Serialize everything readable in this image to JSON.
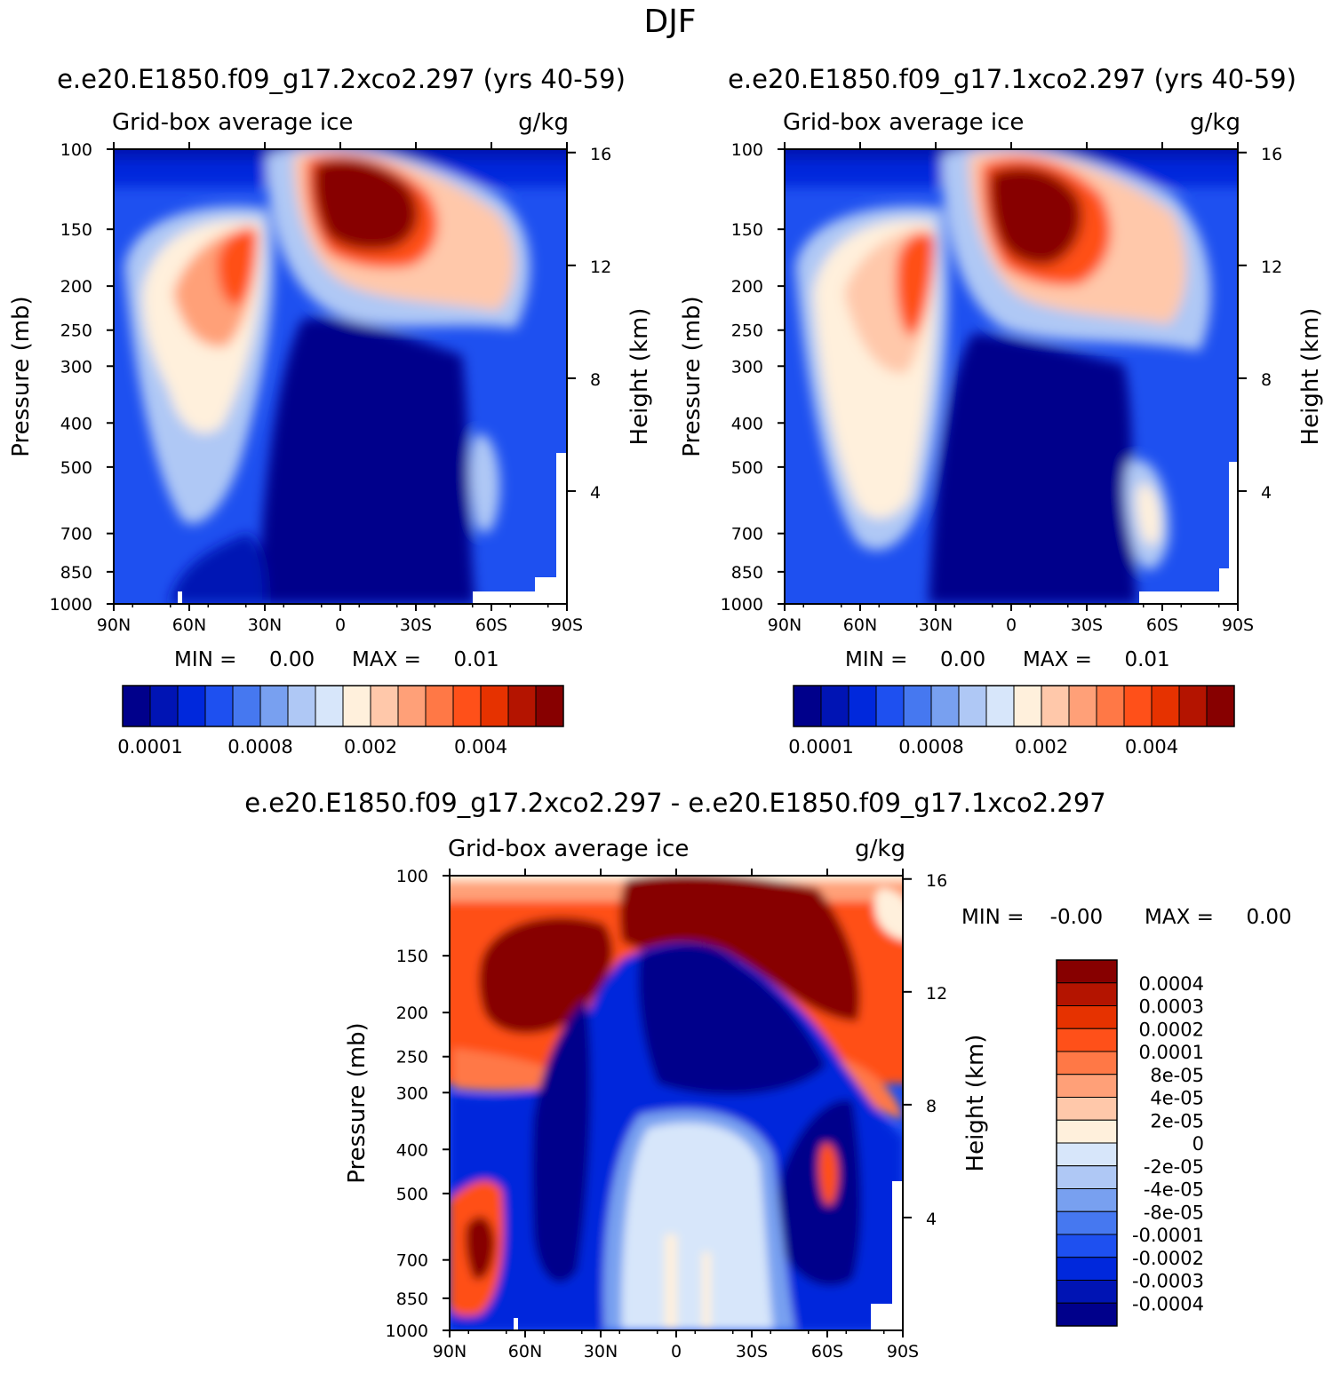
{
  "figure_title": "DJF",
  "colors": {
    "abs_levels": [
      "#00008b",
      "#0014b4",
      "#0028dc",
      "#1e50f0",
      "#4678f0",
      "#78a0f0",
      "#afc8f5",
      "#d7e6fa",
      "#fff0dc",
      "#ffc8aa",
      "#ffa078",
      "#ff7846",
      "#ff5019",
      "#e63200",
      "#b41400",
      "#870000"
    ],
    "diff_levels": [
      "#00008b",
      "#0014b4",
      "#0028dc",
      "#1e50f0",
      "#4678f0",
      "#78a0f0",
      "#afc8f5",
      "#d7e6fa",
      "#fff0dc",
      "#ffc8aa",
      "#ffa078",
      "#ff7846",
      "#ff5019",
      "#e63200",
      "#b41400",
      "#870000"
    ]
  },
  "chart_data": [
    {
      "type": "heatmap",
      "title": "e.e20.E1850.f09_g17.2xco2.297 (yrs 40-59)",
      "left_string": "Grid-box average ice",
      "right_string": "g/kg",
      "ylabel": "Pressure (mb)",
      "ylabel_right": "Height (km)",
      "xticks": [
        "90N",
        "60N",
        "30N",
        "0",
        "30S",
        "60S",
        "90S"
      ],
      "yticks": [
        "100",
        "150",
        "200",
        "250",
        "300",
        "400",
        "500",
        "700",
        "850",
        "1000"
      ],
      "yticks_right": [
        "16",
        "12",
        "8",
        "4"
      ],
      "ylim": [
        1000,
        100
      ],
      "y_scale": "log",
      "min_text": "MIN =     0.00",
      "max_text": "MAX =     0.01",
      "colorbar_labels": [
        "0.0001",
        "0.0008",
        "0.002",
        "0.004"
      ],
      "colorbar_label_slots": [
        1,
        5,
        9,
        13
      ],
      "levels_count": 16
    },
    {
      "type": "heatmap",
      "title": "e.e20.E1850.f09_g17.1xco2.297 (yrs 40-59)",
      "left_string": "Grid-box average ice",
      "right_string": "g/kg",
      "ylabel": "Pressure (mb)",
      "ylabel_right": "Height (km)",
      "xticks": [
        "90N",
        "60N",
        "30N",
        "0",
        "30S",
        "60S",
        "90S"
      ],
      "yticks": [
        "100",
        "150",
        "200",
        "250",
        "300",
        "400",
        "500",
        "700",
        "850",
        "1000"
      ],
      "yticks_right": [
        "16",
        "12",
        "8",
        "4"
      ],
      "ylim": [
        1000,
        100
      ],
      "y_scale": "log",
      "min_text": "MIN =     0.00",
      "max_text": "MAX =     0.01",
      "colorbar_labels": [
        "0.0001",
        "0.0008",
        "0.002",
        "0.004"
      ],
      "colorbar_label_slots": [
        1,
        5,
        9,
        13
      ],
      "levels_count": 16
    },
    {
      "type": "heatmap",
      "title": "e.e20.E1850.f09_g17.2xco2.297 - e.e20.E1850.f09_g17.1xco2.297",
      "left_string": "Grid-box average ice",
      "right_string": "g/kg",
      "ylabel": "Pressure (mb)",
      "ylabel_right": "Height (km)",
      "xticks": [
        "90N",
        "60N",
        "30N",
        "0",
        "30S",
        "60S",
        "90S"
      ],
      "yticks": [
        "100",
        "150",
        "200",
        "250",
        "300",
        "400",
        "500",
        "700",
        "850",
        "1000"
      ],
      "yticks_right": [
        "16",
        "12",
        "8",
        "4"
      ],
      "ylim": [
        1000,
        100
      ],
      "y_scale": "log",
      "min_text": "MIN =    -0.00",
      "max_text": "MAX =     0.00",
      "colorbar_labels": [
        "0.0004",
        "0.0003",
        "0.0002",
        "0.0001",
        "8e-05",
        "4e-05",
        "2e-05",
        "0",
        "-2e-05",
        "-4e-05",
        "-8e-05",
        "-0.0001",
        "-0.0002",
        "-0.0003",
        "-0.0004"
      ],
      "levels_count": 16
    }
  ]
}
